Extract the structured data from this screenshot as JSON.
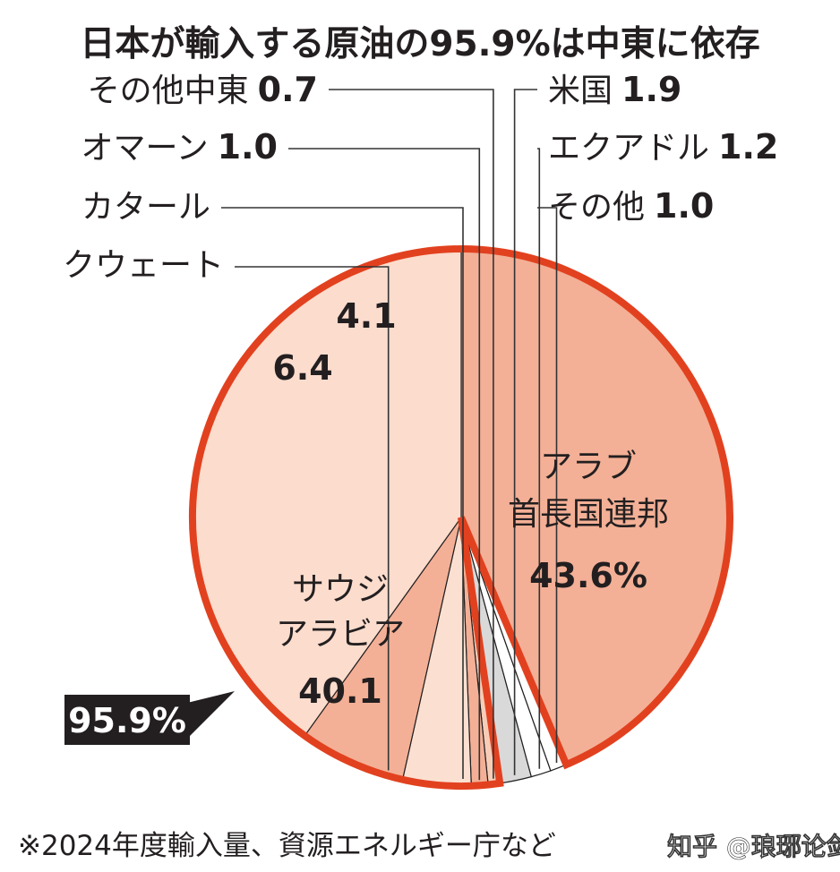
{
  "chart_data": {
    "type": "pie",
    "title": "日本が輸入する原油の95.9%は中東に依存",
    "note": "※2024年度輸入量、資源エネルギー庁など",
    "highlight_total": "95.9%",
    "slices": [
      {
        "key": "uae",
        "lines": [
          "アラブ",
          "首長国連邦"
        ],
        "value": 43.6,
        "value_label": "43.6%",
        "color": "#f3b096",
        "middle_east": true
      },
      {
        "key": "other",
        "lines": [
          "その他"
        ],
        "value": 1.0,
        "value_label": "1.0",
        "color": "#ffffff",
        "middle_east": false
      },
      {
        "key": "ecuador",
        "lines": [
          "エクアドル"
        ],
        "value": 1.2,
        "value_label": "1.2",
        "color": "#ffffff",
        "middle_east": false
      },
      {
        "key": "usa",
        "lines": [
          "米国"
        ],
        "value": 1.9,
        "value_label": "1.9",
        "color": "#d9d9d9",
        "middle_east": false
      },
      {
        "key": "other_me",
        "lines": [
          "その他中東"
        ],
        "value": 0.7,
        "value_label": "0.7",
        "color": "#f8cdb8",
        "middle_east": true
      },
      {
        "key": "oman",
        "lines": [
          "オマーン"
        ],
        "value": 1.0,
        "value_label": "1.0",
        "color": "#f3b096",
        "middle_east": true
      },
      {
        "key": "qatar",
        "lines": [
          "カタール"
        ],
        "value": 4.1,
        "value_label": "4.1",
        "color": "#fbe0d2",
        "middle_east": true
      },
      {
        "key": "kuwait",
        "lines": [
          "クウェート"
        ],
        "value": 6.4,
        "value_label": "6.4",
        "color": "#f3b096",
        "middle_east": true
      },
      {
        "key": "saudi",
        "lines": [
          "サウジ",
          "アラビア"
        ],
        "value": 40.1,
        "value_label": "40.1",
        "color": "#fbdccd",
        "middle_east": true
      }
    ],
    "colors": {
      "outline": "#e2411f",
      "divider": "#231f20",
      "badge": "#231f20"
    }
  },
  "watermark": "知乎 @琅琊论剑"
}
